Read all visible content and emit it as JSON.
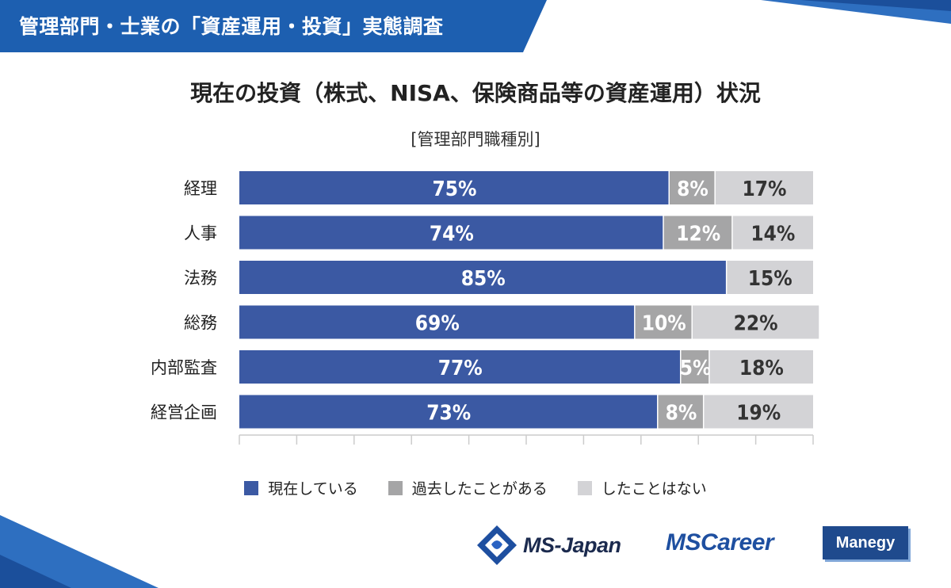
{
  "header": {
    "title": "管理部門・士業の「資産運用・投資」実態調査"
  },
  "colors": {
    "current": "#3b59a3",
    "past": "#a5a5a6",
    "never": "#d3d3d6",
    "brand_blue": "#1d5fb0",
    "grid": "#cccccc"
  },
  "chart_data": {
    "type": "bar",
    "orientation": "horizontal",
    "stacked": true,
    "title": "現在の投資（株式、NISA、保険商品等の資産運用）状況",
    "subtitle": "[管理部門職種別]",
    "categories": [
      "経理",
      "人事",
      "法務",
      "総務",
      "内部監査",
      "経営企画"
    ],
    "series": [
      {
        "name": "現在している",
        "values": [
          75,
          74,
          85,
          69,
          77,
          73
        ]
      },
      {
        "name": "過去したことがある",
        "values": [
          8,
          12,
          0,
          10,
          5,
          8
        ]
      },
      {
        "name": "したことはない",
        "values": [
          17,
          14,
          15,
          22,
          18,
          19
        ]
      }
    ],
    "xlim": [
      0,
      100
    ],
    "value_suffix": "%"
  },
  "legend": {
    "items": [
      {
        "label": "現在している",
        "color": "#3b59a3"
      },
      {
        "label": "過去したことがある",
        "color": "#a5a5a6"
      },
      {
        "label": "したことはない",
        "color": "#d3d3d6"
      }
    ]
  },
  "logos": {
    "ms_japan": "MS-Japan",
    "ms_career": "MSCareer",
    "manegy": "Manegy"
  }
}
